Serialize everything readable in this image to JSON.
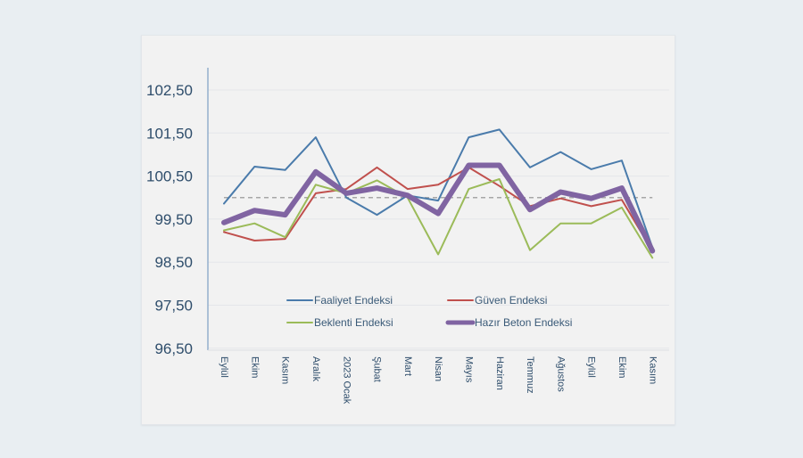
{
  "chart_data": {
    "type": "line",
    "title": "",
    "xlabel": "",
    "ylabel": "",
    "ylim": [
      96.5,
      103.0
    ],
    "yticks": [
      "102,50",
      "101,50",
      "100,50",
      "99,50",
      "98,50",
      "97,50",
      "96,50"
    ],
    "ytick_values": [
      102.5,
      101.5,
      100.5,
      99.5,
      98.5,
      97.5,
      96.5
    ],
    "reference_line": {
      "value": 100.0,
      "style": "dashed",
      "color": "#a6a6a6"
    },
    "grid": true,
    "legend_position": "inside-bottom",
    "categories": [
      "Eylül",
      "Ekim",
      "Kasım",
      "Aralık",
      "2023 Ocak",
      "Şubat",
      "Mart",
      "Nisan",
      "Mayıs",
      "Haziran",
      "Temmuz",
      "Ağustos",
      "Eylül",
      "Ekim",
      "Kasım"
    ],
    "series": [
      {
        "name": "Faaliyet Endeksi",
        "color": "#4a7bab",
        "width": "thin",
        "values": [
          99.86,
          100.72,
          100.64,
          101.4,
          100.0,
          99.6,
          100.05,
          99.93,
          101.4,
          101.58,
          100.7,
          101.06,
          100.66,
          100.86,
          98.84
        ]
      },
      {
        "name": "Güven Endeksi",
        "color": "#c0504d",
        "width": "thin",
        "values": [
          99.2,
          99.0,
          99.04,
          100.1,
          100.2,
          100.7,
          100.2,
          100.3,
          100.7,
          100.27,
          99.8,
          99.98,
          99.8,
          99.95,
          98.76
        ]
      },
      {
        "name": "Beklenti Endeksi",
        "color": "#9bbb59",
        "width": "thin",
        "values": [
          99.24,
          99.4,
          99.08,
          100.3,
          100.1,
          100.4,
          100.0,
          98.68,
          100.2,
          100.43,
          98.78,
          99.4,
          99.4,
          99.77,
          98.6
        ]
      },
      {
        "name": "Hazır Beton Endeksi",
        "color": "#8064a2",
        "width": "thick",
        "values": [
          99.42,
          99.7,
          99.6,
          100.6,
          100.1,
          100.22,
          100.05,
          99.63,
          100.75,
          100.75,
          99.72,
          100.13,
          99.98,
          100.22,
          98.76
        ]
      }
    ]
  }
}
